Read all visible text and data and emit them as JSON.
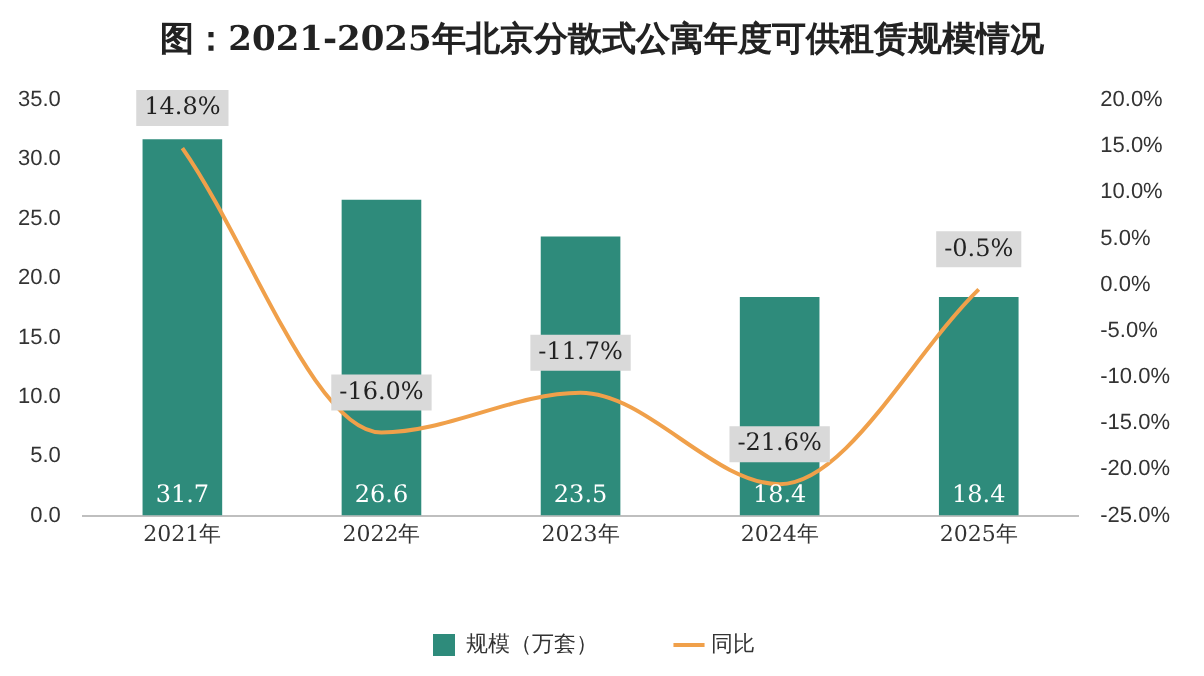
{
  "chart_data": {
    "type": "bar",
    "title": "图：2021-2025年北京分散式公寓年度可供租赁规模情况",
    "categories": [
      "2021年",
      "2022年",
      "2023年",
      "2024年",
      "2025年"
    ],
    "series": [
      {
        "name": "规模（万套）",
        "color": "#2e8b7b",
        "values": [
          31.7,
          26.6,
          23.5,
          18.4,
          18.4
        ],
        "value_labels": [
          "31.7",
          "26.6",
          "23.5",
          "18.4",
          "18.4"
        ]
      },
      {
        "name": "同比",
        "type": "line",
        "axis": "y2",
        "color": "#f0a04a",
        "values": [
          14.8,
          -16.0,
          -11.7,
          -21.6,
          -0.5
        ],
        "value_labels": [
          "14.8%",
          "-16.0%",
          "-11.7%",
          "-21.6%",
          "-0.5%"
        ]
      }
    ],
    "ylim": [
      0,
      35
    ],
    "yticks": [
      {
        "value": 0,
        "label": "0.0"
      },
      {
        "value": 5,
        "label": "5.0"
      },
      {
        "value": 10,
        "label": "10.0"
      },
      {
        "value": 15,
        "label": "15.0"
      },
      {
        "value": 20,
        "label": "20.0"
      },
      {
        "value": 25,
        "label": "25.0"
      },
      {
        "value": 30,
        "label": "30.0"
      },
      {
        "value": 35,
        "label": "35.0"
      }
    ],
    "y2lim": [
      -25,
      20
    ],
    "y2ticks": [
      {
        "value": -25,
        "label": "-25.0%"
      },
      {
        "value": -20,
        "label": "-20.0%"
      },
      {
        "value": -15,
        "label": "-15.0%"
      },
      {
        "value": -10,
        "label": "-10.0%"
      },
      {
        "value": -5,
        "label": "-5.0%"
      },
      {
        "value": 0,
        "label": "0.0%"
      },
      {
        "value": 5,
        "label": "5.0%"
      },
      {
        "value": 10,
        "label": "10.0%"
      },
      {
        "value": 15,
        "label": "15.0%"
      },
      {
        "value": 20,
        "label": "20.0%"
      }
    ],
    "grid": false,
    "legend": "bottom",
    "marker": "none"
  }
}
